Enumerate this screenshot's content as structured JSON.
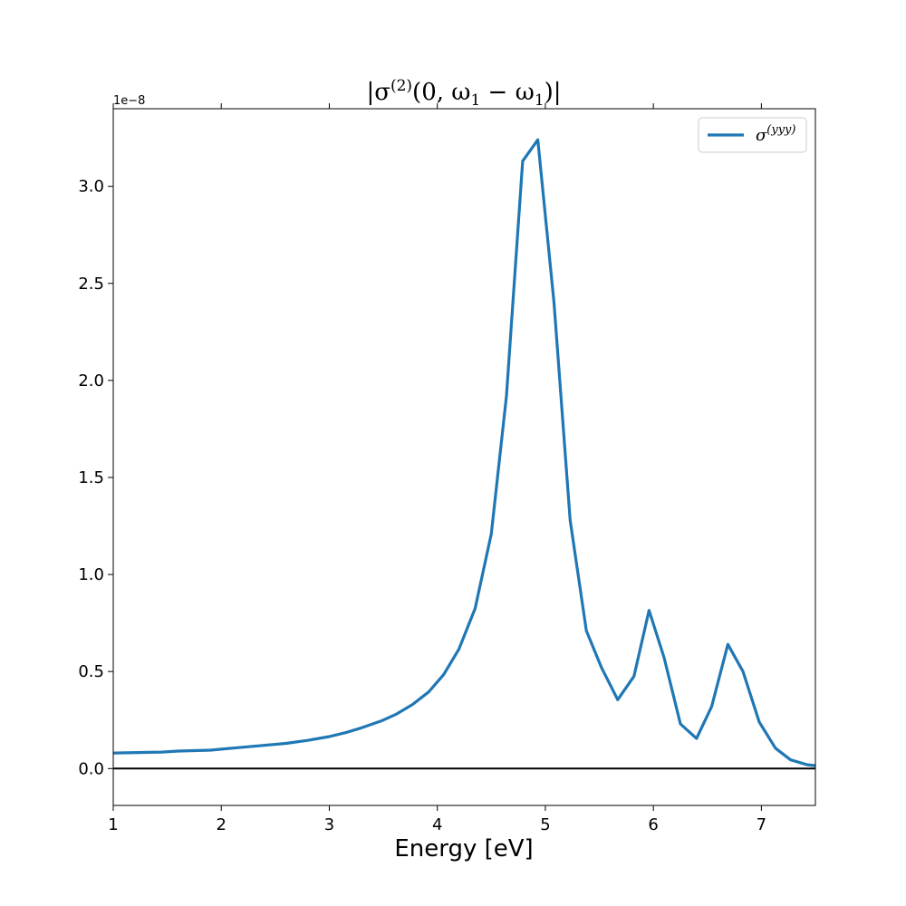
{
  "chart_data": {
    "type": "line",
    "title": "|σ(2)(0, ω1 − ω1)|",
    "xlabel": "Energy [eV]",
    "ylabel": "",
    "y_offset_label": "1e−8",
    "xlim": [
      1,
      7.5
    ],
    "ylim": [
      -0.19,
      3.4
    ],
    "x_ticks": [
      1,
      2,
      3,
      4,
      5,
      6,
      7
    ],
    "y_ticks": [
      0.0,
      0.5,
      1.0,
      1.5,
      2.0,
      2.5,
      3.0
    ],
    "x_tick_labels": [
      "1",
      "2",
      "3",
      "4",
      "5",
      "6",
      "7"
    ],
    "y_tick_labels": [
      "0.0",
      "0.5",
      "1.0",
      "1.5",
      "2.0",
      "2.5",
      "3.0"
    ],
    "grid": false,
    "legend_position": "top-right",
    "zero_line": true,
    "series": [
      {
        "name": "σ(yyy)",
        "color": "#1f77b4",
        "x": [
          1.0,
          1.45,
          1.6,
          1.9,
          2.1,
          2.3,
          2.6,
          2.8,
          3.0,
          3.15,
          3.3,
          3.48,
          3.62,
          3.77,
          3.92,
          4.06,
          4.2,
          4.35,
          4.5,
          4.64,
          4.79,
          4.93,
          5.08,
          5.23,
          5.38,
          5.52,
          5.67,
          5.82,
          5.96,
          6.1,
          6.25,
          6.4,
          6.54,
          6.69,
          6.83,
          6.98,
          7.13,
          7.27,
          7.42,
          7.5
        ],
        "y": [
          0.08,
          0.085,
          0.09,
          0.095,
          0.105,
          0.115,
          0.13,
          0.145,
          0.165,
          0.185,
          0.21,
          0.245,
          0.28,
          0.33,
          0.395,
          0.485,
          0.615,
          0.825,
          1.21,
          1.92,
          3.13,
          3.24,
          2.4,
          1.28,
          0.71,
          0.52,
          0.355,
          0.475,
          0.815,
          0.57,
          0.23,
          0.155,
          0.32,
          0.64,
          0.5,
          0.24,
          0.105,
          0.045,
          0.02,
          0.015
        ]
      }
    ]
  }
}
